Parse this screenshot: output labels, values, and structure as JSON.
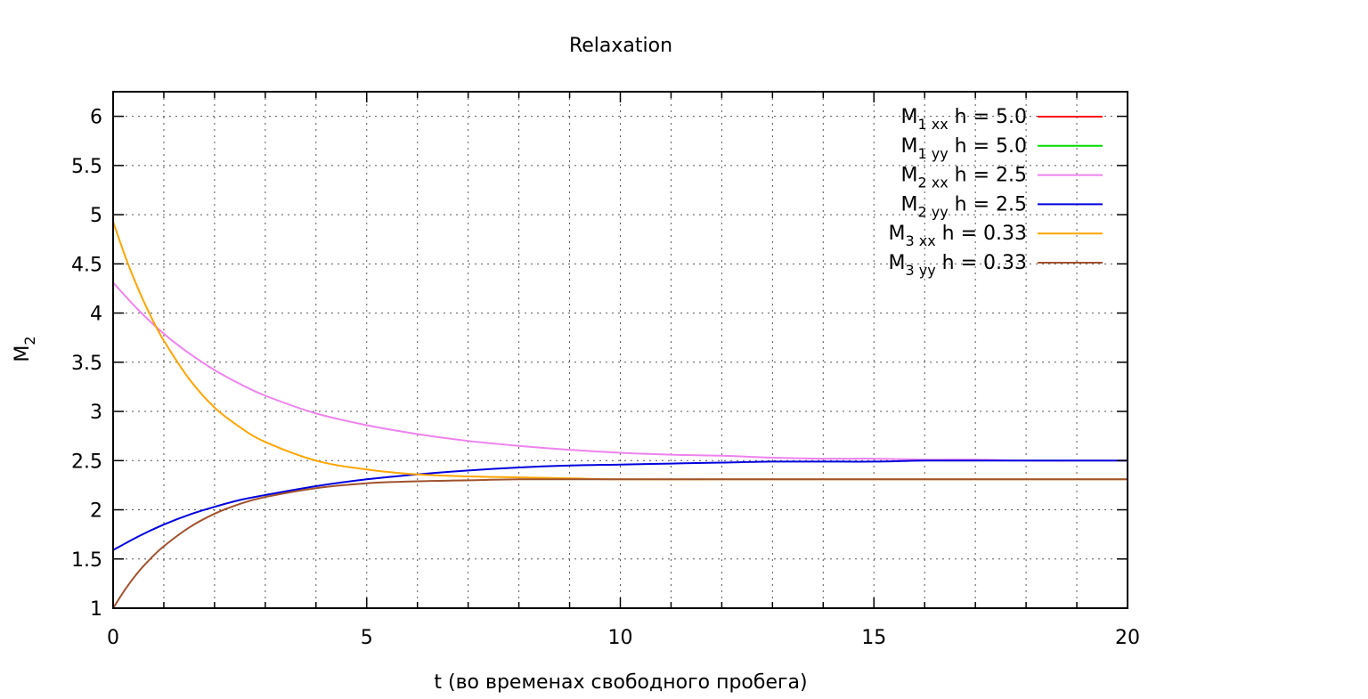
{
  "chart_data": {
    "type": "line",
    "title": "Relaxation",
    "xlabel": "t (во временах свободного пробега)",
    "ylabel": {
      "base": "M",
      "sub": "2"
    },
    "xlim": [
      0,
      20
    ],
    "ylim": [
      1,
      6.25
    ],
    "x_ticks": [
      0,
      5,
      10,
      15,
      20
    ],
    "x_tick_labels": [
      "0",
      "5",
      "10",
      "15",
      "20"
    ],
    "x_minor_step": 1,
    "y_ticks": [
      1,
      1.5,
      2,
      2.5,
      3,
      3.5,
      4,
      4.5,
      5,
      5.5,
      6
    ],
    "y_tick_labels": [
      "1",
      "1.5",
      "2",
      "2.5",
      "3",
      "3.5",
      "4",
      "4.5",
      "5",
      "5.5",
      "6"
    ],
    "grid": true,
    "legend_position": "top-right",
    "series": [
      {
        "name": "M1 xx h = 5.0",
        "label_base": "M",
        "label_sub": "1 xx",
        "label_rest": " h = 5.0",
        "color": "#ff0000",
        "x": [
          0,
          20
        ],
        "y": [
          6.25,
          6.25
        ]
      },
      {
        "name": "M1 yy h = 5.0",
        "label_base": "M",
        "label_sub": "1 yy",
        "label_rest": " h = 5.0",
        "color": "#00dd00",
        "x": [
          0,
          20
        ],
        "y": [
          6.25,
          6.25
        ]
      },
      {
        "name": "M2 xx h = 2.5",
        "label_base": "M",
        "label_sub": "2 xx",
        "label_rest": " h = 2.5",
        "color": "#ee82ee",
        "x": [
          0,
          0.5,
          1,
          1.5,
          2,
          2.5,
          3,
          4,
          5,
          6,
          7,
          8,
          9,
          10,
          11,
          12,
          13,
          14,
          15,
          16,
          17,
          18,
          19,
          20
        ],
        "y": [
          4.31,
          4.03,
          3.79,
          3.59,
          3.42,
          3.28,
          3.16,
          2.98,
          2.86,
          2.77,
          2.7,
          2.65,
          2.61,
          2.58,
          2.56,
          2.55,
          2.53,
          2.52,
          2.52,
          2.51,
          2.51,
          2.5,
          2.5,
          2.5
        ]
      },
      {
        "name": "M2 yy h = 2.5",
        "label_base": "M",
        "label_sub": "2 yy",
        "label_rest": " h = 2.5",
        "color": "#0000dd",
        "x": [
          0,
          0.5,
          1,
          1.5,
          2,
          2.5,
          3,
          4,
          5,
          6,
          7,
          8,
          9,
          10,
          11,
          12,
          13,
          14,
          15,
          16,
          17,
          18,
          19,
          20
        ],
        "y": [
          1.59,
          1.73,
          1.85,
          1.95,
          2.03,
          2.1,
          2.15,
          2.24,
          2.31,
          2.36,
          2.4,
          2.43,
          2.45,
          2.46,
          2.47,
          2.48,
          2.49,
          2.49,
          2.49,
          2.5,
          2.5,
          2.5,
          2.5,
          2.5
        ]
      },
      {
        "name": "M3 xx h = 0.33",
        "label_base": "M",
        "label_sub": "3 xx",
        "label_rest": " h = 0.33",
        "color": "#ffa500",
        "x": [
          0,
          0.25,
          0.5,
          0.75,
          1,
          1.5,
          2,
          2.5,
          3,
          4,
          5,
          6,
          7,
          8,
          9,
          10,
          12,
          14,
          16,
          18,
          20
        ],
        "y": [
          4.93,
          4.56,
          4.24,
          3.96,
          3.72,
          3.33,
          3.04,
          2.84,
          2.69,
          2.5,
          2.41,
          2.36,
          2.34,
          2.33,
          2.32,
          2.31,
          2.31,
          2.31,
          2.31,
          2.31,
          2.31
        ]
      },
      {
        "name": "M3 yy h = 0.33",
        "label_base": "M",
        "label_sub": "3 yy",
        "label_rest": " h = 0.33",
        "color": "#a0522d",
        "x": [
          0,
          0.25,
          0.5,
          0.75,
          1,
          1.5,
          2,
          2.5,
          3,
          4,
          5,
          6,
          7,
          8,
          9,
          10,
          12,
          14,
          16,
          18,
          20
        ],
        "y": [
          1.0,
          1.2,
          1.37,
          1.51,
          1.63,
          1.82,
          1.96,
          2.06,
          2.13,
          2.22,
          2.27,
          2.29,
          2.3,
          2.31,
          2.31,
          2.31,
          2.31,
          2.31,
          2.31,
          2.31,
          2.31
        ]
      }
    ]
  }
}
